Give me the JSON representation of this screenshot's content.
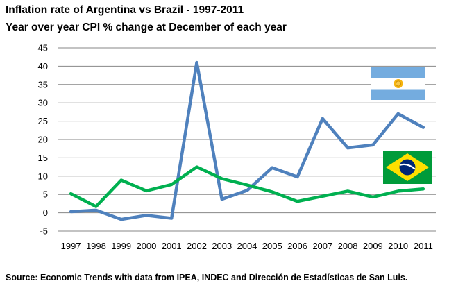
{
  "chart_data": {
    "type": "line",
    "title": "Inflation rate of Argentina vs Brazil - 1997-2011",
    "subtitle": "Year over year CPI % change at December of each year",
    "xlabel": "",
    "ylabel": "",
    "categories": [
      "1997",
      "1998",
      "1999",
      "2000",
      "2001",
      "2002",
      "2003",
      "2004",
      "2005",
      "2006",
      "2007",
      "2008",
      "2009",
      "2010",
      "2011"
    ],
    "series": [
      {
        "flag": "argentina-flag",
        "color": "#4f81bd",
        "values": [
          0.3,
          0.7,
          -1.8,
          -0.7,
          -1.5,
          41.0,
          3.7,
          6.1,
          12.3,
          9.8,
          25.7,
          17.7,
          18.5,
          27.0,
          23.3
        ]
      },
      {
        "flag": "brazil-flag",
        "color": "#00b050",
        "values": [
          5.2,
          1.7,
          8.9,
          6.0,
          7.7,
          12.5,
          9.3,
          7.6,
          5.7,
          3.1,
          4.5,
          5.9,
          4.3,
          5.9,
          6.5
        ]
      }
    ],
    "ylim": [
      -5,
      45
    ],
    "yticks": [
      -5,
      0,
      5,
      10,
      15,
      20,
      25,
      30,
      35,
      40,
      45
    ],
    "grid": true,
    "legend": "flag icons on right"
  },
  "source": "Source: Economic Trends with data from IPEA, INDEC and Dirección de Estadísticas de San Luis."
}
